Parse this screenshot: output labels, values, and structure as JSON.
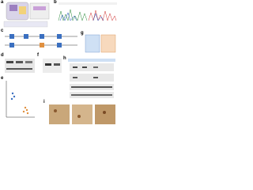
{
  "panels": [
    {
      "label": "a"
    },
    {
      "label": "b"
    },
    {
      "label": "c"
    },
    {
      "label": "d"
    },
    {
      "label": "e"
    },
    {
      "label": "f"
    },
    {
      "label": "g"
    },
    {
      "label": "h"
    },
    {
      "label": "i"
    }
  ]
}
